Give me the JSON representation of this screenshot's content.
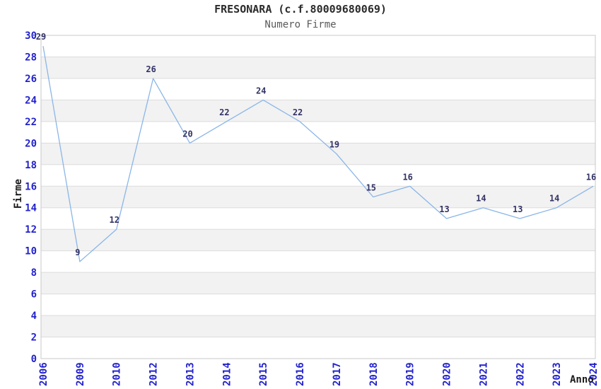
{
  "title": "FRESONARA (c.f.80009680069)",
  "subtitle": "Numero Firme",
  "chart_data": {
    "type": "line",
    "title": "FRESONARA (c.f.80009680069)",
    "subtitle": "Numero Firme",
    "xlabel": "Anno",
    "ylabel": "Firme",
    "categories": [
      "2006",
      "2009",
      "2010",
      "2012",
      "2013",
      "2014",
      "2015",
      "2016",
      "2017",
      "2018",
      "2019",
      "2020",
      "2021",
      "2022",
      "2023",
      "2024"
    ],
    "values": [
      29,
      9,
      12,
      26,
      20,
      22,
      24,
      22,
      19,
      15,
      16,
      13,
      14,
      13,
      14,
      16
    ],
    "ylim": [
      0,
      30
    ],
    "ytick_step": 2,
    "yticks": [
      0,
      2,
      4,
      6,
      8,
      10,
      12,
      14,
      16,
      18,
      20,
      22,
      24,
      26,
      28,
      30
    ],
    "grid": "horizontal",
    "legend": "none",
    "point_labels": true,
    "colors": {
      "line": "#8ab6e8",
      "tick_label": "#2222cc",
      "data_label": "#333366",
      "grid_line": "#dcdcdc",
      "band_fill": "#f2f2f2",
      "plot_border": "#c8c8c8",
      "title": "#2b2b2b",
      "subtitle": "#5a5a5a",
      "axis_title": "#1a1a1a"
    }
  }
}
